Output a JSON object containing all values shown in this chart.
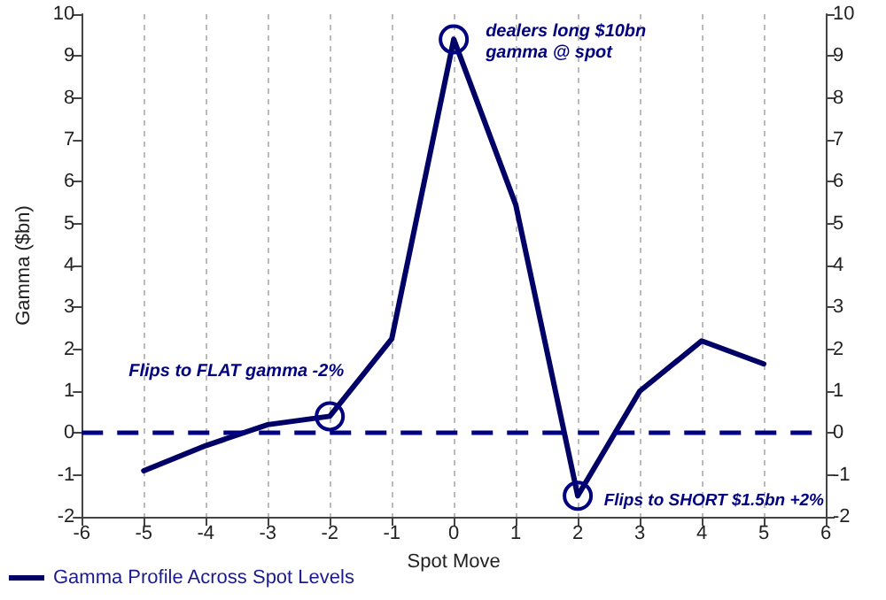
{
  "chart_data": {
    "type": "line",
    "xlabel": "Spot Move",
    "ylabel": "Gamma ($bn)",
    "x": [
      -5,
      -4,
      -3,
      -2,
      -1,
      0,
      1,
      2,
      3,
      4,
      5
    ],
    "series": [
      {
        "name": "Gamma Profile Across Spot Levels",
        "color": "#000066",
        "values": [
          -0.9,
          -0.3,
          0.2,
          0.4,
          2.25,
          9.4,
          5.45,
          -1.5,
          1.0,
          2.2,
          1.65
        ]
      }
    ],
    "xlim": [
      -6,
      6
    ],
    "xticks": [
      -6,
      -5,
      -4,
      -3,
      -2,
      -1,
      0,
      1,
      2,
      3,
      4,
      5,
      6
    ],
    "ylim": [
      -2,
      10
    ],
    "yticks": [
      -2,
      -1,
      0,
      1,
      2,
      3,
      4,
      5,
      6,
      7,
      8,
      9,
      10
    ],
    "y2lim": [
      -2,
      10
    ],
    "y2ticks": [
      -2,
      -1,
      0,
      1,
      2,
      3,
      4,
      5,
      6,
      7,
      8,
      9,
      10
    ],
    "grid": "x",
    "legend": "bottom left",
    "ref_lines": [
      {
        "axis": "y",
        "value": 0,
        "color": "#000080",
        "line_style": "dashed"
      }
    ],
    "annotations": [
      {
        "text": "dealers long $10bn gamma @ spot",
        "x": 0,
        "y": 9.4
      },
      {
        "text": "Flips to FLAT gamma -2%",
        "x": -2,
        "y": 0.4
      },
      {
        "text": "Flips to SHORT $1.5bn +2%",
        "x": 2,
        "y": -1.5
      }
    ]
  }
}
